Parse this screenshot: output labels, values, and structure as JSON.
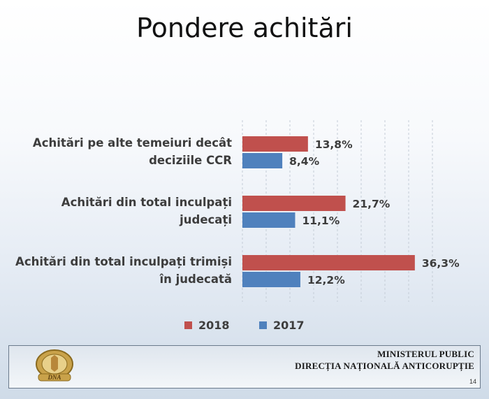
{
  "slide": {
    "title": "Pondere achitări",
    "footer_line1": "MINISTERUL PUBLIC",
    "footer_line2": "DIRECȚIA NAȚIONALĂ ANTICORUPȚIE",
    "page_number": "14",
    "seal_text": "DNA"
  },
  "chart_data": {
    "type": "bar",
    "orientation": "horizontal",
    "categories": [
      [
        "Achitări pe alte temeiuri decât",
        "deciziile CCR"
      ],
      [
        "Achitări din total inculpați",
        "judecați"
      ],
      [
        "Achitări din total inculpați trimiși",
        "în judecată"
      ]
    ],
    "series": [
      {
        "name": "2018",
        "color": "#c0504d",
        "values": [
          13.8,
          21.7,
          36.3
        ],
        "labels": [
          "13,8%",
          "21,7%",
          "36,3%"
        ]
      },
      {
        "name": "2017",
        "color": "#4f81bd",
        "values": [
          8.4,
          11.1,
          12.2
        ],
        "labels": [
          "8,4%",
          "11,1%",
          "12,2%"
        ]
      }
    ],
    "xlim": [
      0,
      40
    ],
    "grid": "vertical dashed",
    "legend_position": "bottom"
  }
}
